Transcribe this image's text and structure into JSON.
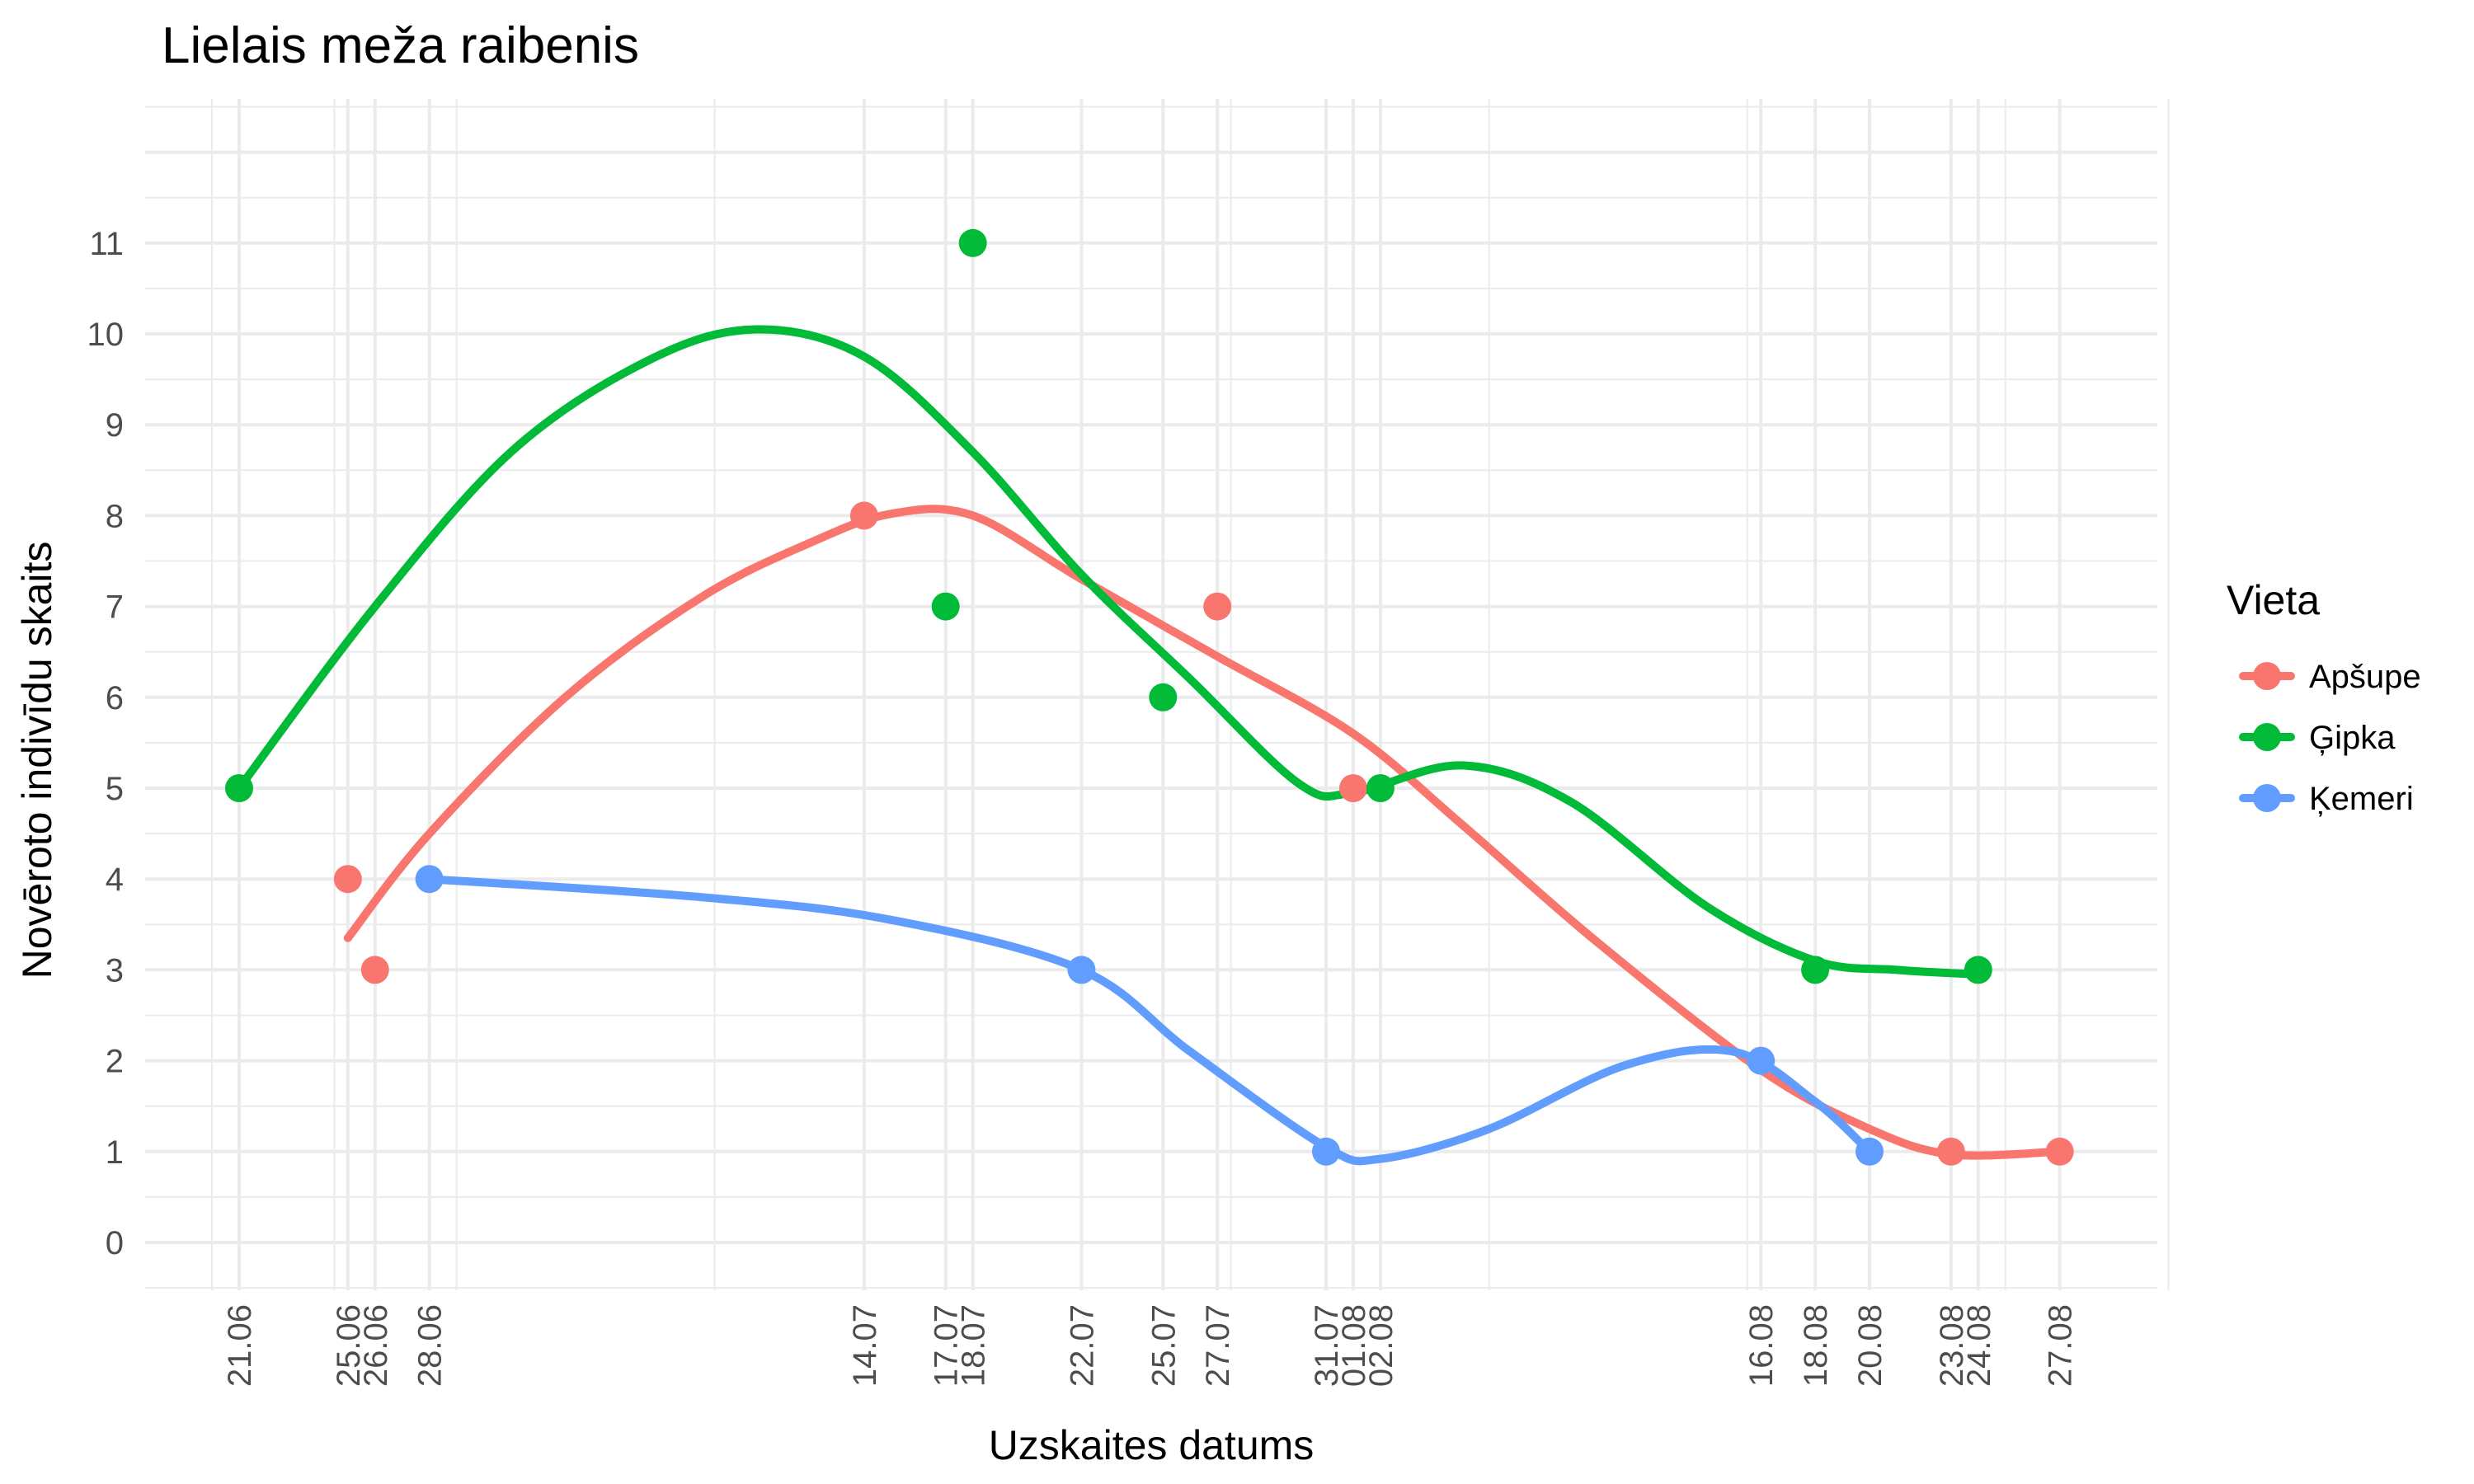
{
  "chart_data": {
    "type": "scatter",
    "title": "Lielais meža raibenis",
    "xlabel": "Uzskaites datums",
    "ylabel": "Novēroto indivīdu skaits",
    "ylim": [
      -0.5,
      12.5
    ],
    "y_ticks": [
      0,
      1,
      2,
      3,
      4,
      5,
      6,
      7,
      8,
      9,
      10,
      11
    ],
    "x_ticks": [
      "21.06",
      "25.06",
      "26.06",
      "28.06",
      "14.07",
      "17.07",
      "18.07",
      "22.07",
      "25.07",
      "27.07",
      "31.07",
      "01.08",
      "02.08",
      "16.08",
      "18.08",
      "20.08",
      "23.08",
      "24.08",
      "27.08"
    ],
    "grid": true,
    "legend": {
      "title": "Vieta",
      "position": "right"
    },
    "series": [
      {
        "name": "Apšupe",
        "color": "#F8766D",
        "points": [
          {
            "x": "25.06",
            "y": 4
          },
          {
            "x": "26.06",
            "y": 3
          },
          {
            "x": "14.07",
            "y": 8
          },
          {
            "x": "27.07",
            "y": 7
          },
          {
            "x": "01.08",
            "y": 5
          },
          {
            "x": "23.08",
            "y": 1
          },
          {
            "x": "27.08",
            "y": 1
          }
        ],
        "smooth": [
          {
            "x": "25.06",
            "y": 3.35
          },
          {
            "x": "28.06",
            "y": 4.5
          },
          {
            "x": "03.07",
            "y": 6.0
          },
          {
            "x": "08.07",
            "y": 7.1
          },
          {
            "x": "12.07",
            "y": 7.7
          },
          {
            "x": "15.07",
            "y": 8.02
          },
          {
            "x": "18.07",
            "y": 8.0
          },
          {
            "x": "22.07",
            "y": 7.3
          },
          {
            "x": "27.07",
            "y": 6.45
          },
          {
            "x": "01.08",
            "y": 5.6
          },
          {
            "x": "05.08",
            "y": 4.6
          },
          {
            "x": "10.08",
            "y": 3.3
          },
          {
            "x": "16.08",
            "y": 1.9
          },
          {
            "x": "20.08",
            "y": 1.25
          },
          {
            "x": "23.08",
            "y": 0.97
          },
          {
            "x": "27.08",
            "y": 1.0
          }
        ]
      },
      {
        "name": "Ģipka",
        "color": "#00BA38",
        "points": [
          {
            "x": "21.06",
            "y": 5
          },
          {
            "x": "17.07",
            "y": 7
          },
          {
            "x": "18.07",
            "y": 11
          },
          {
            "x": "25.07",
            "y": 6
          },
          {
            "x": "02.08",
            "y": 5
          },
          {
            "x": "18.08",
            "y": 3
          },
          {
            "x": "24.08",
            "y": 3
          }
        ],
        "smooth": [
          {
            "x": "21.06",
            "y": 5.0
          },
          {
            "x": "26.06",
            "y": 7.0
          },
          {
            "x": "01.07",
            "y": 8.7
          },
          {
            "x": "06.07",
            "y": 9.7
          },
          {
            "x": "10.07",
            "y": 10.05
          },
          {
            "x": "14.07",
            "y": 9.75
          },
          {
            "x": "18.07",
            "y": 8.7
          },
          {
            "x": "22.07",
            "y": 7.35
          },
          {
            "x": "26.07",
            "y": 6.2
          },
          {
            "x": "30.07",
            "y": 5.05
          },
          {
            "x": "01.08",
            "y": 4.95
          },
          {
            "x": "05.08",
            "y": 5.25
          },
          {
            "x": "09.08",
            "y": 4.85
          },
          {
            "x": "14.08",
            "y": 3.7
          },
          {
            "x": "18.08",
            "y": 3.1
          },
          {
            "x": "21.08",
            "y": 3.0
          },
          {
            "x": "24.08",
            "y": 2.95
          }
        ]
      },
      {
        "name": "Ķemeri",
        "color": "#619CFF",
        "points": [
          {
            "x": "28.06",
            "y": 4
          },
          {
            "x": "22.07",
            "y": 3
          },
          {
            "x": "31.07",
            "y": 1
          },
          {
            "x": "16.08",
            "y": 2
          },
          {
            "x": "20.08",
            "y": 1
          }
        ],
        "smooth": [
          {
            "x": "28.06",
            "y": 4.0
          },
          {
            "x": "08.07",
            "y": 3.8
          },
          {
            "x": "15.07",
            "y": 3.55
          },
          {
            "x": "22.07",
            "y": 3.0
          },
          {
            "x": "26.07",
            "y": 2.1
          },
          {
            "x": "31.07",
            "y": 1.05
          },
          {
            "x": "02.08",
            "y": 0.92
          },
          {
            "x": "06.08",
            "y": 1.25
          },
          {
            "x": "11.08",
            "y": 1.95
          },
          {
            "x": "15.08",
            "y": 2.1
          },
          {
            "x": "18.08",
            "y": 1.55
          },
          {
            "x": "20.08",
            "y": 1.0
          }
        ]
      }
    ]
  }
}
